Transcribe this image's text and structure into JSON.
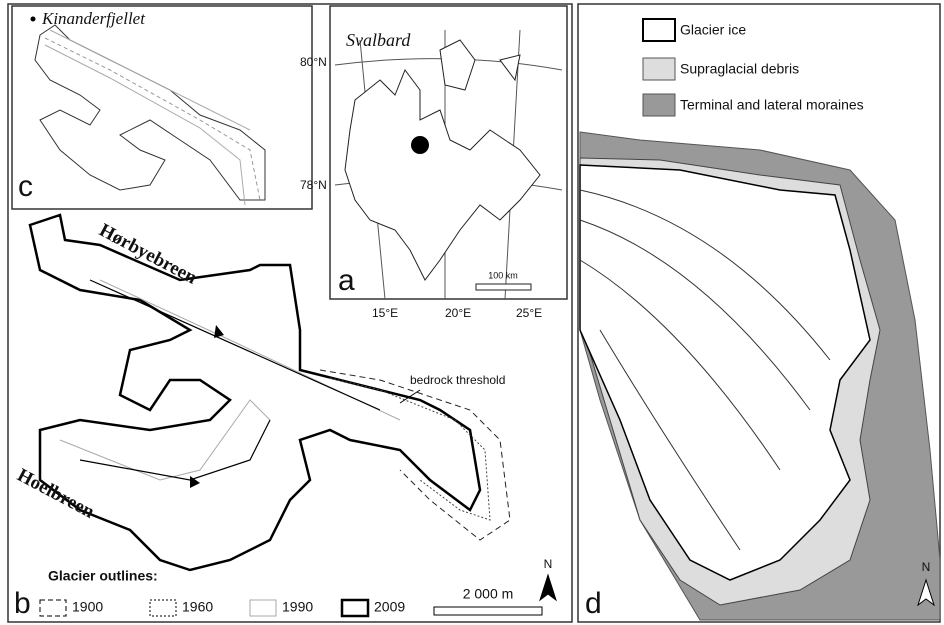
{
  "panel_c": {
    "place": "Kinanderfjellet",
    "letter": "c"
  },
  "panel_a": {
    "region": "Svalbard",
    "lat_labels": [
      "80°N",
      "78°N"
    ],
    "lon_labels": [
      "15°E",
      "20°E",
      "25°E"
    ],
    "scale": "100 km",
    "letter": "a"
  },
  "panel_b": {
    "glaciers": [
      "Hørbyebreen",
      "Hoelbreen"
    ],
    "annotation": "bedrock threshold",
    "north": "N",
    "letter": "b",
    "legend": {
      "title": "Glacier outlines:",
      "items": [
        "1900",
        "1960",
        "1990",
        "2009"
      ]
    },
    "scale": "2 000 m"
  },
  "panel_d": {
    "legend": [
      "Glacier ice",
      "Supraglacial debris",
      "Terminal and lateral moraines"
    ],
    "north": "N",
    "letter": "d"
  }
}
